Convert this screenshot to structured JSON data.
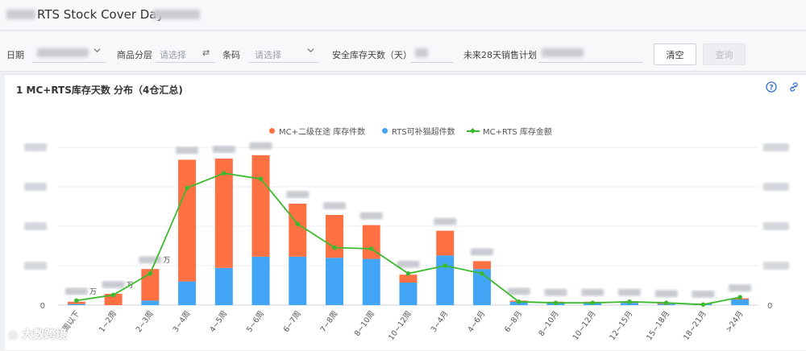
{
  "header": {
    "title": "RTS Stock Cover Day"
  },
  "filters": {
    "date_label": "日期",
    "category_label": "商品分层",
    "category_placeholder": "请选择",
    "barcode_label": "条码",
    "barcode_placeholder": "请选择",
    "safety_label": "安全库存天数（天）",
    "plan_label": "未来28天销售计划",
    "clear_label": "清空",
    "query_label": "查询"
  },
  "panel": {
    "title": "1 MC+RTS库存天数 分布（4仓汇总)"
  },
  "colors": {
    "orange": "#ff7043",
    "blue": "#42a5f5",
    "green": "#3cba2e"
  },
  "chart_data": {
    "type": "bar",
    "categories": [
      "1周以下",
      "1~2周",
      "2~3周",
      "3~4周",
      "4~5周",
      "5~6周",
      "6~7周",
      "7~8周",
      "8~10周",
      "10~12周",
      "3~4月",
      "4~6月",
      "6~8月",
      "8~10月",
      "10~12月",
      "12~15月",
      "15~18月",
      "18~21月",
      ">24月"
    ],
    "series": [
      {
        "name": "MC+二级在途 库存件数",
        "type": "bar",
        "stack": "s",
        "values": [
          2,
          10,
          28,
          108,
          97,
          90,
          47,
          38,
          30,
          7,
          22,
          7,
          1,
          1,
          1,
          1,
          1,
          0.5,
          1
        ]
      },
      {
        "name": "RTS可补猫超件数",
        "type": "bar",
        "stack": "s",
        "values": [
          1,
          0,
          4,
          21,
          33,
          43,
          43,
          42,
          41,
          20,
          44,
          32,
          3,
          2,
          2,
          2,
          1,
          1,
          5
        ]
      },
      {
        "name": "MC+RTS 库存金额",
        "type": "line",
        "values": [
          4,
          9,
          28,
          104,
          117,
          112,
          72,
          51,
          50,
          28,
          35,
          28,
          3,
          2,
          2,
          3,
          2,
          0.5,
          7
        ]
      }
    ],
    "y_axis_left_ticks": [
      "0"
    ],
    "y_axis_right_ticks": [
      "0"
    ],
    "ylim": [
      0,
      140
    ],
    "data_labels": {
      "0": "万",
      "1": "万",
      "2": "万"
    },
    "legend_position": "top-center",
    "grid": true
  }
}
